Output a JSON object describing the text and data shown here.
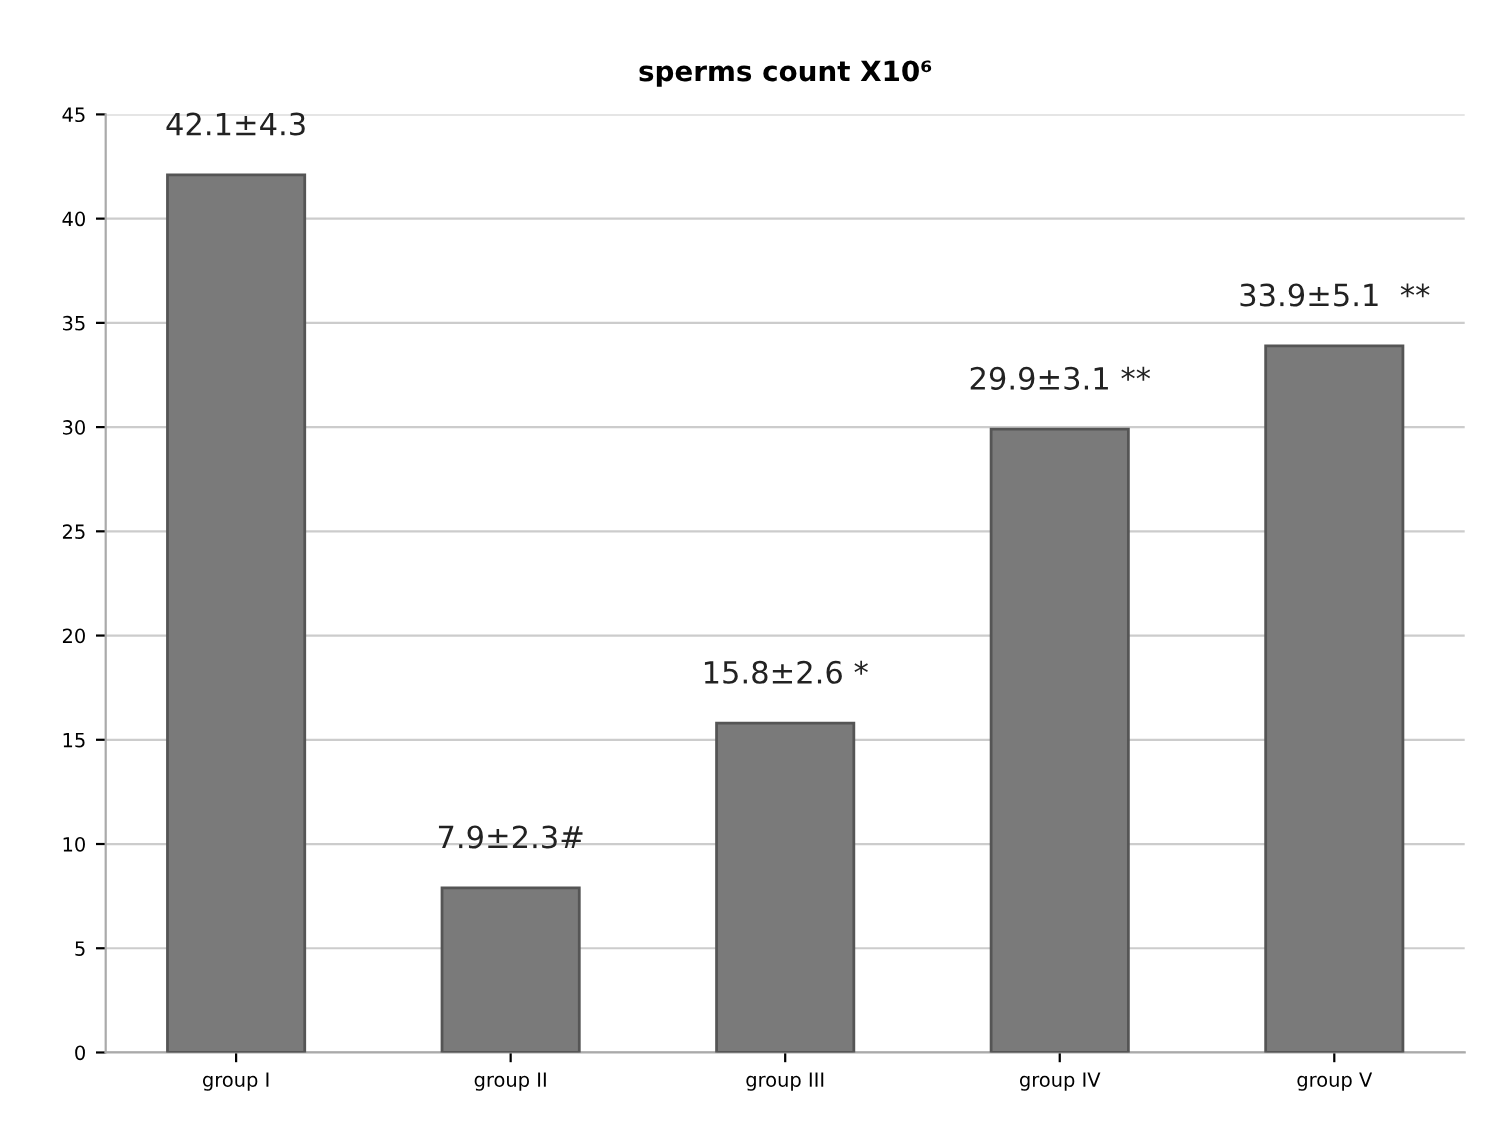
{
  "chart_data": {
    "type": "bar",
    "title": "sperms count X10⁶",
    "categories": [
      "group I",
      "group II",
      "group III",
      "group IV",
      "group V"
    ],
    "values": [
      42.1,
      7.9,
      15.8,
      29.9,
      33.9
    ],
    "value_labels": [
      "42.1±4.3",
      "7.9±2.3#",
      "15.8±2.6 *",
      "29.9±3.1 **",
      "33.9±5.1  **"
    ],
    "color": "#7a7a7a",
    "ylim": [
      0,
      45
    ],
    "yticks": [
      0,
      5,
      10,
      15,
      20,
      25,
      30,
      35,
      40,
      45
    ],
    "grid": "y"
  }
}
